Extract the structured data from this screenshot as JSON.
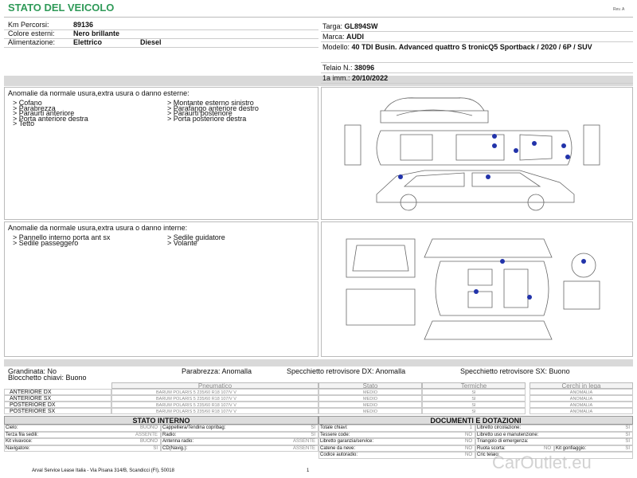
{
  "header": {
    "title": "STATO DEL VEICOLO",
    "revision": "Rev. A"
  },
  "vehicle_left": [
    {
      "label": "Km Percorsi:",
      "value": "89136"
    },
    {
      "label": "Colore esterni:",
      "value": "Nero brillante"
    },
    {
      "label": "Alimentazione:",
      "value": "Elettrico",
      "value2": "Diesel"
    }
  ],
  "vehicle_right": [
    {
      "label": "Targa:",
      "value": "GL894SW"
    },
    {
      "label": "Marca:",
      "value": "AUDI"
    },
    {
      "label": "Modello:",
      "value": "40 TDI Busin. Advanced quattro S tronicQ5 Sportback / 2020 / 6P / SUV"
    },
    {
      "label": "Telaio N.:",
      "value": "38096"
    },
    {
      "label": "1a imm.:",
      "value": "20/10/2022"
    }
  ],
  "exterior": {
    "title": "Anomalie da normale usura,extra usura o danno esterne:",
    "left": [
      "> Cofano",
      "> Parabrezza",
      "> Paraurti anteriore",
      "> Porta anteriore destra",
      "> Tetto"
    ],
    "right": [
      "> Montante esterno sinistro",
      "> Parafango anteriore destro",
      "> Paraurti posteriore",
      "> Porta posteriore destra"
    ]
  },
  "interior": {
    "title": "Anomalie da normale usura,extra usura o danno interne:",
    "left": [
      "> Pannello interno porta ant sx",
      "> Sedile passeggero"
    ],
    "right": [
      "> Sedile guidatore",
      "> Volante"
    ]
  },
  "checks": [
    "Grandinata: No",
    "Parabrezza: Anomalla",
    "Specchietto retrovisore DX: Anomalla",
    "Specchietto retrovisore SX: Buono",
    "Blocchetto chiavi: Buono"
  ],
  "tires": {
    "header": [
      "Pneumatico",
      "Stato",
      "Termiche",
      "Cerchi in lega"
    ],
    "rows": [
      [
        "ANTERIORE DX",
        "BARUM POLARIS 5 235/60 R18 107/V V",
        "MEDIO",
        "SI",
        "ANOMALIA"
      ],
      [
        "ANTERIORE SX",
        "BARUM POLARIS 5 235/60 R18 107/V V",
        "MEDIO",
        "SI",
        "ANOMALIA"
      ],
      [
        "POSTERIORE DX",
        "BARUM POLARIS 5 235/60 R18 107/V V",
        "MEDIO",
        "SI",
        "ANOMALIA"
      ],
      [
        "POSTERIORE SX",
        "BARUM POLARIS 5 235/60 R18 107/V V",
        "MEDIO",
        "SI",
        "ANOMALIA"
      ]
    ]
  },
  "interior_state": {
    "title": "STATO INTERNO",
    "rows": [
      [
        "Cielo:",
        "BUONO",
        "Cappelliera/Tendina copribag:",
        "SI"
      ],
      [
        "Terza fila sedili:",
        "ASSENTE",
        "Radio:",
        "SI"
      ],
      [
        "Kit vivavoce:",
        "BUONO",
        "Antenna radio:",
        "ASSENTE"
      ],
      [
        "Navigatore:",
        "SI",
        "CD(Navig.):",
        "ASSENTE"
      ]
    ]
  },
  "documents": {
    "title": "DOCUMENTI E DOTAZIONI",
    "rows": [
      [
        "Totale chiavi:",
        "1",
        "Libretto circolazione:",
        "SI"
      ],
      [
        "Tessere code:",
        "NO",
        "Libretto uso e manutenzione:",
        "SI"
      ],
      [
        "Libretto garanzia/service:",
        "NO",
        "Triangolo di emergenza:",
        "SI"
      ],
      [
        "Catene da neve:",
        "NO",
        "Ruota scorta:",
        "NO",
        "Kit gonfiaggio:",
        "SI"
      ],
      [
        "Codice autoradio:",
        "NO",
        "Cric telaio:"
      ]
    ]
  },
  "footer": {
    "address": "Arval Service Lease Italia - Via Pisana 314/B, Scandicci (FI), 50018",
    "page": "1"
  },
  "watermark": "CarOutlet.eu"
}
